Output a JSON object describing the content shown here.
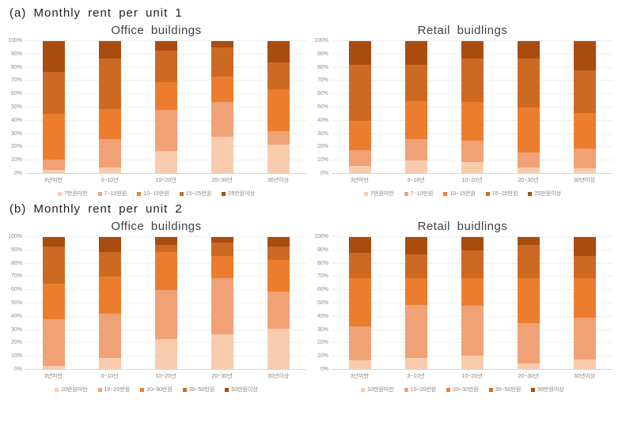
{
  "page": {
    "background": "#ffffff"
  },
  "sections": [
    {
      "label": "(a) Monthly rent per unit 1"
    },
    {
      "label": "(b) Monthly rent per unit 2"
    }
  ],
  "palette": {
    "series_colors": [
      "#f8cbad",
      "#f0a176",
      "#ed7d2e",
      "#cc6a24",
      "#a94c10"
    ],
    "gridline": "#efefef",
    "axis_text": "#8d8d8d",
    "title_text": "#3f3f3f"
  },
  "chart_data": [
    {
      "id": "office-buildings-a",
      "type": "bar",
      "stacked": true,
      "units": "percent",
      "grid": true,
      "legend_position": "bottom",
      "title": "Office buildings",
      "categories": [
        "3년미만",
        "3~10년",
        "10~20년",
        "20~30년",
        "30년이상"
      ],
      "series": [
        {
          "name": "7만원미만",
          "values": [
            3,
            5,
            17,
            28,
            22
          ]
        },
        {
          "name": "7~10만원",
          "values": [
            8,
            21,
            31,
            26,
            10
          ]
        },
        {
          "name": "10~15만원",
          "values": [
            34,
            23,
            21,
            19,
            32
          ]
        },
        {
          "name": "15~25만원",
          "values": [
            32,
            38,
            24,
            22,
            20
          ]
        },
        {
          "name": "25만원이상",
          "values": [
            23,
            13,
            7,
            5,
            16
          ]
        }
      ],
      "colors": [
        "#f8cbad",
        "#f0a176",
        "#ed7d2e",
        "#cc6a24",
        "#a94c10"
      ],
      "ylim": [
        0,
        100
      ],
      "yticks": [
        "0%",
        "10%",
        "20%",
        "30%",
        "40%",
        "50%",
        "60%",
        "70%",
        "80%",
        "90%",
        "100%"
      ]
    },
    {
      "id": "retail-buildings-a",
      "type": "bar",
      "stacked": true,
      "units": "percent",
      "grid": true,
      "legend_position": "bottom",
      "title": "Retail buidlings",
      "categories": [
        "3년미만",
        "3~10년",
        "10~20년",
        "20~30년",
        "30년이상"
      ],
      "series": [
        {
          "name": "7만원미만",
          "values": [
            6,
            10,
            9,
            5,
            4
          ]
        },
        {
          "name": "7~10만원",
          "values": [
            12,
            16,
            16,
            11,
            15
          ]
        },
        {
          "name": "10~15만원",
          "values": [
            22,
            29,
            29,
            34,
            27
          ]
        },
        {
          "name": "15~25만원",
          "values": [
            42,
            27,
            33,
            37,
            32
          ]
        },
        {
          "name": "25만원이상",
          "values": [
            18,
            18,
            13,
            13,
            22
          ]
        }
      ],
      "colors": [
        "#f8cbad",
        "#f0a176",
        "#ed7d2e",
        "#cc6a24",
        "#a94c10"
      ],
      "ylim": [
        0,
        100
      ],
      "yticks": [
        "0%",
        "10%",
        "20%",
        "30%",
        "40%",
        "50%",
        "60%",
        "70%",
        "80%",
        "90%",
        "100%"
      ]
    },
    {
      "id": "office-buildings-b",
      "type": "bar",
      "stacked": true,
      "units": "percent",
      "grid": true,
      "legend_position": "bottom",
      "title": "Office buildings",
      "categories": [
        "3년미만",
        "3~10년",
        "10~20년",
        "20~30년",
        "30년이상"
      ],
      "series": [
        {
          "name": "10만원미만",
          "values": [
            3,
            9,
            23,
            27,
            31
          ]
        },
        {
          "name": "10~20만원",
          "values": [
            35,
            33,
            37,
            42,
            28
          ]
        },
        {
          "name": "20~30만원",
          "values": [
            27,
            28,
            29,
            17,
            24
          ]
        },
        {
          "name": "30~50만원",
          "values": [
            28,
            19,
            5,
            10,
            10
          ]
        },
        {
          "name": "50만원이상",
          "values": [
            7,
            11,
            6,
            4,
            7
          ]
        }
      ],
      "colors": [
        "#f8cbad",
        "#f0a176",
        "#ed7d2e",
        "#cc6a24",
        "#a94c10"
      ],
      "ylim": [
        0,
        100
      ],
      "yticks": [
        "0%",
        "10%",
        "20%",
        "30%",
        "40%",
        "50%",
        "60%",
        "70%",
        "80%",
        "90%",
        "100%"
      ]
    },
    {
      "id": "retail-buildings-b",
      "type": "bar",
      "stacked": true,
      "units": "percent",
      "grid": true,
      "legend_position": "bottom",
      "title": "Retail buidlings",
      "categories": [
        "3년미만",
        "3~10년",
        "10~20년",
        "20~30년",
        "30년이상"
      ],
      "series": [
        {
          "name": "10만원미만",
          "values": [
            7,
            9,
            11,
            5,
            8
          ]
        },
        {
          "name": "10~20만원",
          "values": [
            26,
            40,
            37,
            30,
            31
          ]
        },
        {
          "name": "20~30만원",
          "values": [
            36,
            20,
            21,
            34,
            30
          ]
        },
        {
          "name": "30~50만원",
          "values": [
            19,
            18,
            21,
            25,
            17
          ]
        },
        {
          "name": "50만원이상",
          "values": [
            12,
            13,
            10,
            6,
            14
          ]
        }
      ],
      "colors": [
        "#f8cbad",
        "#f0a176",
        "#ed7d2e",
        "#cc6a24",
        "#a94c10"
      ],
      "ylim": [
        0,
        100
      ],
      "yticks": [
        "0%",
        "10%",
        "20%",
        "30%",
        "40%",
        "50%",
        "60%",
        "70%",
        "80%",
        "90%",
        "100%"
      ]
    }
  ]
}
